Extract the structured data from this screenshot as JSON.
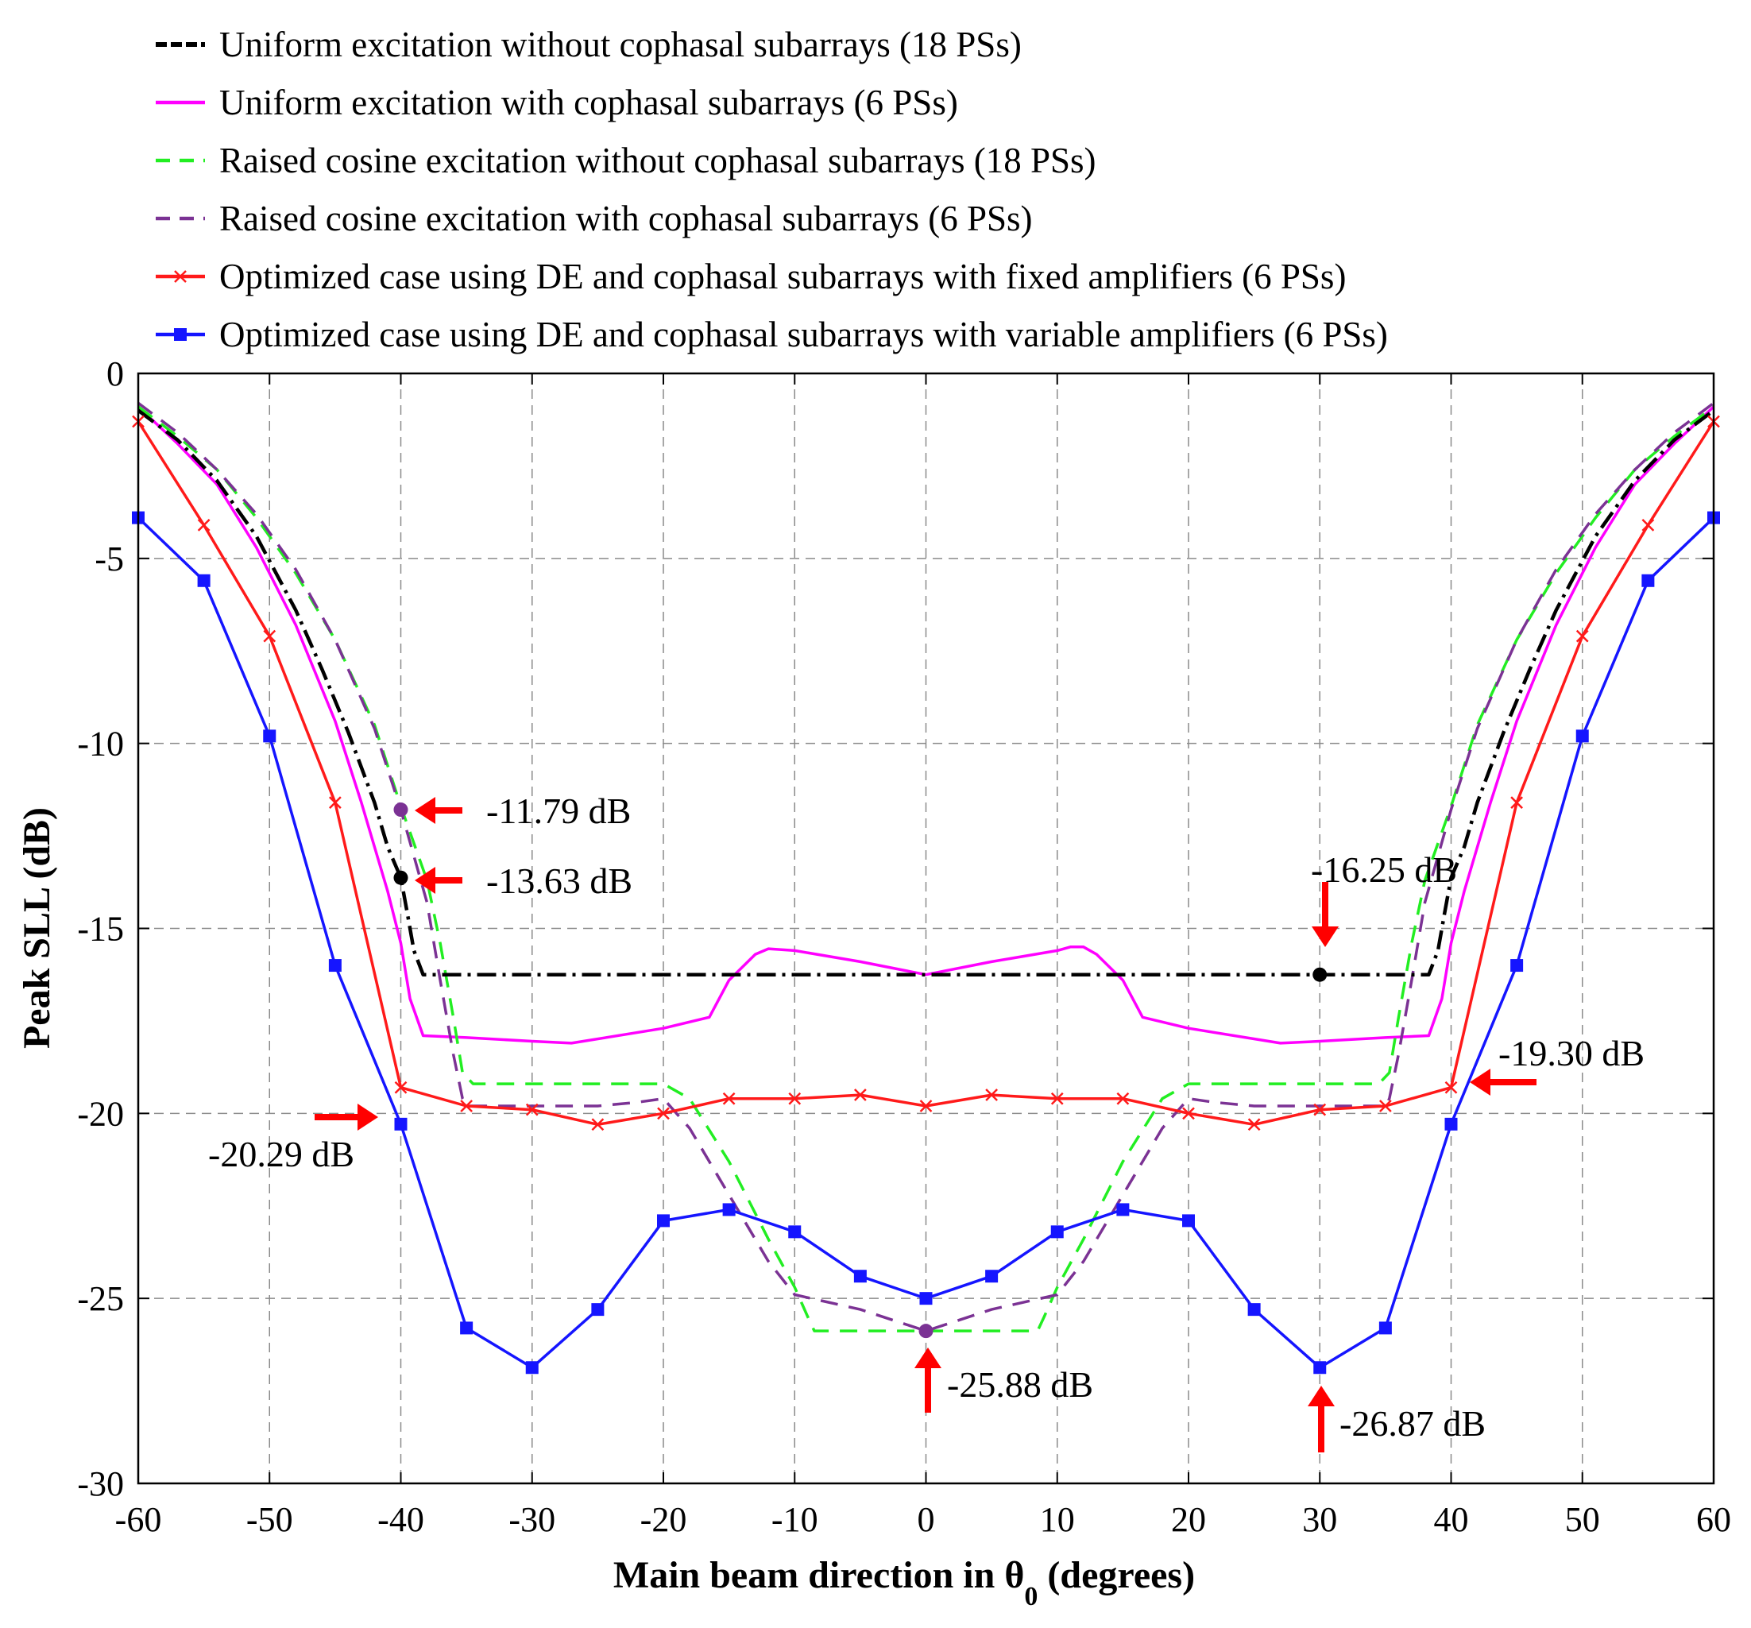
{
  "chart_data": {
    "type": "line",
    "title": "",
    "xlabel": "Main beam direction in θ",
    "xlabel_subscript": "0",
    "xlabel_suffix": " (degrees)",
    "ylabel": "Peak SLL (dB)",
    "xlim": [
      -60,
      60
    ],
    "ylim": [
      -30,
      0
    ],
    "xticks": [
      -60,
      -50,
      -40,
      -30,
      -20,
      -10,
      0,
      10,
      20,
      30,
      40,
      50,
      60
    ],
    "yticks": [
      0,
      -5,
      -10,
      -15,
      -20,
      -25,
      -30
    ],
    "grid": true,
    "legend_position": "top",
    "colors": {
      "uniform_no_cophasal": "#000000",
      "uniform_cophasal": "#ff00ff",
      "raised_cosine_no_cophasal": "#22ee22",
      "raised_cosine_cophasal": "#7b3294",
      "de_fixed": "#ff1a1a",
      "de_variable": "#1515ff",
      "annotation_arrow": "#ff0000"
    },
    "series": [
      {
        "id": "uniform_no_cophasal",
        "name": "Uniform excitation without cophasal subarrays (18 PSs)",
        "style": "dashdot",
        "marker": "none",
        "x": [
          -60,
          -57,
          -54,
          -51,
          -48,
          -46,
          -44,
          -42,
          -41,
          -40,
          -39.5,
          -39,
          -38.3,
          -37,
          -20,
          0,
          20,
          37,
          38.3,
          39,
          39.5,
          40,
          41,
          42,
          44,
          46,
          48,
          51,
          54,
          57,
          60
        ],
        "y": [
          -1.0,
          -1.8,
          -2.9,
          -4.4,
          -6.4,
          -8.0,
          -9.7,
          -11.6,
          -12.8,
          -13.63,
          -14.6,
          -15.6,
          -16.25,
          -16.25,
          -16.25,
          -16.25,
          -16.25,
          -16.25,
          -16.25,
          -15.6,
          -14.6,
          -13.63,
          -12.8,
          -11.6,
          -9.7,
          -8.0,
          -6.4,
          -4.4,
          -2.9,
          -1.8,
          -1.0
        ]
      },
      {
        "id": "uniform_cophasal",
        "name": "Uniform excitation with cophasal subarrays (6 PSs)",
        "style": "solid",
        "marker": "none",
        "x": [
          -60,
          -57,
          -54,
          -51,
          -48,
          -45,
          -43,
          -41,
          -40,
          -39.3,
          -38.3,
          -35,
          -30,
          -27,
          -20,
          -16.5,
          -15,
          -13,
          -12,
          -10,
          -5,
          0,
          5,
          10,
          11,
          12,
          13,
          15,
          16.5,
          20,
          27,
          30,
          35,
          38.3,
          39.3,
          40,
          41,
          43,
          45,
          48,
          51,
          54,
          57,
          60
        ],
        "y": [
          -0.9,
          -1.9,
          -3.0,
          -4.7,
          -6.8,
          -9.4,
          -11.6,
          -14.0,
          -15.4,
          -16.9,
          -17.9,
          -17.95,
          -18.05,
          -18.1,
          -17.7,
          -17.4,
          -16.4,
          -15.7,
          -15.55,
          -15.6,
          -15.9,
          -16.25,
          -15.9,
          -15.6,
          -15.5,
          -15.5,
          -15.7,
          -16.4,
          -17.4,
          -17.7,
          -18.1,
          -18.05,
          -17.95,
          -17.9,
          -16.9,
          -15.4,
          -14.0,
          -11.6,
          -9.4,
          -6.8,
          -4.7,
          -3.0,
          -1.9,
          -0.9
        ]
      },
      {
        "id": "raised_cosine_no_cophasal",
        "name": "Raised cosine excitation without cophasal subarrays (18 PSs)",
        "style": "dashed",
        "marker": "none",
        "x": [
          -60,
          -57,
          -54,
          -51,
          -48,
          -45,
          -42,
          -40,
          -38,
          -37,
          -36,
          -35.3,
          -34.5,
          -20,
          -18,
          -15,
          -12,
          -10,
          -9,
          -8.5,
          -8,
          0,
          8,
          8.5,
          9,
          10,
          12,
          15,
          18,
          20,
          34.5,
          35.3,
          36,
          37,
          38,
          40,
          42,
          45,
          48,
          51,
          54,
          57,
          60
        ],
        "y": [
          -0.9,
          -1.7,
          -2.6,
          -3.9,
          -5.4,
          -7.2,
          -9.5,
          -11.7,
          -13.7,
          -15.4,
          -17.4,
          -18.9,
          -19.2,
          -19.2,
          -19.6,
          -21.3,
          -23.4,
          -24.7,
          -25.5,
          -25.88,
          -25.88,
          -25.88,
          -25.88,
          -25.88,
          -25.5,
          -24.7,
          -23.4,
          -21.3,
          -19.6,
          -19.2,
          -19.2,
          -18.9,
          -17.4,
          -15.4,
          -13.7,
          -11.7,
          -9.5,
          -7.2,
          -5.4,
          -3.9,
          -2.6,
          -1.7,
          -0.9
        ]
      },
      {
        "id": "raised_cosine_cophasal",
        "name": "Raised cosine excitation with cophasal subarrays (6 PSs)",
        "style": "dashed",
        "marker": "none",
        "x": [
          -60,
          -57,
          -54,
          -51,
          -48,
          -45,
          -42,
          -40,
          -38,
          -37,
          -36,
          -35.3,
          -35,
          -25,
          -22,
          -20,
          -18,
          -15,
          -12,
          -10,
          -5,
          0,
          5,
          10,
          12,
          15,
          18,
          20,
          22,
          25,
          35,
          35.3,
          36,
          37,
          38,
          40,
          42,
          45,
          48,
          51,
          54,
          57,
          60
        ],
        "y": [
          -0.8,
          -1.6,
          -2.6,
          -3.8,
          -5.3,
          -7.2,
          -9.6,
          -11.79,
          -14.3,
          -16.4,
          -18.4,
          -19.6,
          -19.8,
          -19.8,
          -19.7,
          -19.6,
          -20.4,
          -22.2,
          -24.0,
          -24.9,
          -25.3,
          -25.88,
          -25.3,
          -24.9,
          -24.0,
          -22.2,
          -20.4,
          -19.6,
          -19.7,
          -19.8,
          -19.8,
          -19.6,
          -18.4,
          -16.4,
          -14.3,
          -11.79,
          -9.6,
          -7.2,
          -5.3,
          -3.8,
          -2.6,
          -1.6,
          -0.8
        ]
      },
      {
        "id": "de_fixed",
        "name": "Optimized case using DE and cophasal subarrays with fixed amplifiers (6 PSs)",
        "style": "solid",
        "marker": "x",
        "x": [
          -60,
          -55,
          -50,
          -45,
          -40,
          -35,
          -30,
          -25,
          -20,
          -15,
          -10,
          -5,
          0,
          5,
          10,
          15,
          20,
          25,
          30,
          35,
          40,
          45,
          50,
          55,
          60
        ],
        "y": [
          -1.3,
          -4.1,
          -7.1,
          -11.6,
          -19.3,
          -19.8,
          -19.9,
          -20.3,
          -20.0,
          -19.6,
          -19.6,
          -19.5,
          -19.8,
          -19.5,
          -19.6,
          -19.6,
          -20.0,
          -20.3,
          -19.9,
          -19.8,
          -19.3,
          -11.6,
          -7.1,
          -4.1,
          -1.3
        ]
      },
      {
        "id": "de_variable",
        "name": "Optimized case using DE and cophasal subarrays with variable amplifiers (6 PSs)",
        "style": "solid",
        "marker": "square",
        "x": [
          -60,
          -55,
          -50,
          -45,
          -40,
          -35,
          -30,
          -25,
          -20,
          -15,
          -10,
          -5,
          0,
          5,
          10,
          15,
          20,
          25,
          30,
          35,
          40,
          45,
          50,
          55,
          60
        ],
        "y": [
          -3.9,
          -5.6,
          -9.8,
          -16.0,
          -20.29,
          -25.8,
          -26.87,
          -25.3,
          -22.9,
          -22.6,
          -23.2,
          -24.4,
          -25.0,
          -24.4,
          -23.2,
          -22.6,
          -22.9,
          -25.3,
          -26.87,
          -25.8,
          -20.29,
          -16.0,
          -9.8,
          -5.6,
          -3.9
        ]
      }
    ],
    "highlight_points": [
      {
        "series": "raised_cosine_cophasal",
        "x": -40,
        "y": -11.79
      },
      {
        "series": "uniform_no_cophasal",
        "x": -40,
        "y": -13.63
      },
      {
        "series": "uniform_no_cophasal",
        "x": 30,
        "y": -16.25
      },
      {
        "series": "raised_cosine_cophasal",
        "x": 0,
        "y": -25.88
      }
    ],
    "annotations": [
      {
        "id": "ann-11-79",
        "text": "-11.79 dB",
        "point_x": -40,
        "point_y": -11.79,
        "arrow": "from-right"
      },
      {
        "id": "ann-13-63",
        "text": "-13.63 dB",
        "point_x": -40,
        "point_y": -13.63,
        "arrow": "from-right"
      },
      {
        "id": "ann-16-25",
        "text": "-16.25 dB",
        "point_x": 30,
        "point_y": -16.25,
        "arrow": "from-above"
      },
      {
        "id": "ann-19-30",
        "text": "-19.30 dB",
        "point_x": 40,
        "point_y": -19.3,
        "arrow": "from-right"
      },
      {
        "id": "ann-20-29",
        "text": "-20.29 dB",
        "point_x": -40,
        "point_y": -20.29,
        "arrow": "from-left"
      },
      {
        "id": "ann-25-88",
        "text": "-25.88 dB",
        "point_x": 0,
        "point_y": -25.88,
        "arrow": "from-below"
      },
      {
        "id": "ann-26-87",
        "text": "-26.87 dB",
        "point_x": 30,
        "point_y": -26.87,
        "arrow": "from-below"
      }
    ]
  }
}
